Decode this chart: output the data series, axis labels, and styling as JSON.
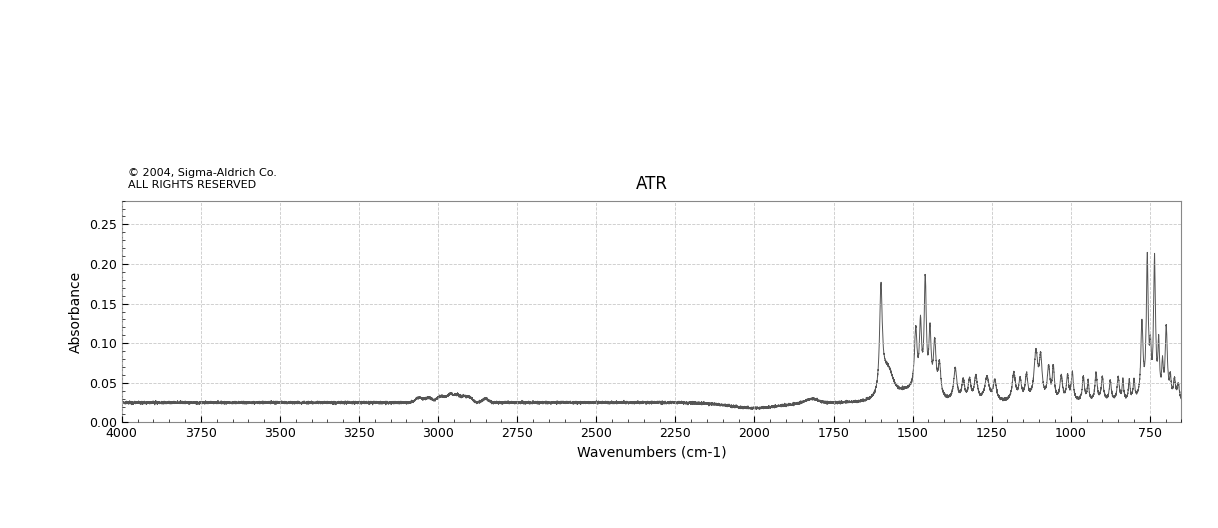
{
  "title": "ATR",
  "copyright": "© 2004, Sigma-Aldrich Co.\nALL RIGHTS RESERVED",
  "xlabel": "Wavenumbers (cm-1)",
  "ylabel": "Absorbance",
  "xlim": [
    650,
    4000
  ],
  "ylim": [
    0.0,
    0.28
  ],
  "xticks": [
    4000,
    3750,
    3500,
    3250,
    3000,
    2750,
    2500,
    2250,
    2000,
    1750,
    1500,
    1250,
    1000,
    750
  ],
  "yticks": [
    0.0,
    0.05,
    0.1,
    0.15,
    0.2,
    0.25
  ],
  "line_color": "#555555",
  "background_color": "#ffffff",
  "grid_color": "#bbbbbb"
}
